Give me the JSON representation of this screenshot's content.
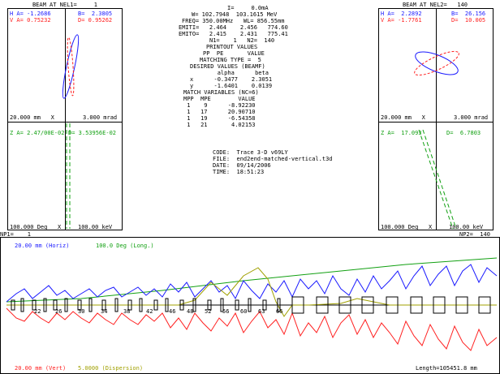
{
  "left_panel": {
    "title": "BEAM AT NEL1=     1",
    "h_a": "H A= -1.2686",
    "v_a": "V A= 0.75232",
    "h_b": "B=  2.3805",
    "v_b": "D= 0.95262",
    "scale_x": "20.000 mm   X",
    "scale_xp": "3.000 mrad",
    "z_a": "Z A= 2.47/00E-02",
    "z_b": "D= 3.53956E-02",
    "scale_phase": "100.000 Deg   X",
    "scale_energy": "100.00 keV"
  },
  "right_panel": {
    "title": "BEAM AT NEL2=   140",
    "h_a": "H A=  2.2892",
    "v_a": "V A= -1.7761",
    "h_b": "B=  26.156",
    "v_b": "D=  10.005",
    "scale_x": "20.000 mm   X",
    "scale_xp": "3.000 mrad",
    "z_a": "Z A=  17.093",
    "z_b": "D=  6.7803",
    "scale_phase": "100.000 Deg   X",
    "scale_energy": "100.00 keV"
  },
  "center_info": {
    "l1": "I=     0.0mA",
    "l2": "W= 102.7948  103.1615 MeV",
    "l3": "FREQ= 350.00MHz   WL= 856.55mm",
    "l4": "EMITI=   2.464    2.456   774.60",
    "l5": "EMITO=   2.415    2.431   775.41",
    "l6": "N1=    1   N2=  140",
    "l7": "PRINTOUT VALUES",
    "l8": "PP  PE       VALUE",
    "l9": "MATCHING TYPE =  5",
    "l10": "DESIRED VALUES (BEAMF)",
    "l11": "        alpha      beta",
    "l12": "x      -0.3477    2.3051",
    "l13": "y      -1.6401    0.0139",
    "l14": "MATCH VARIABLES (NC=6)",
    "l15": "MPP  MPE        VALUE",
    "l16": " 1    9      -8.92230",
    "l17": " 1   17      20.90710",
    "l18": " 1   19      -6.54358",
    "l19": " 1   21       4.02153"
  },
  "file_info": {
    "code": "CODE:  Trace 3-D v69LY",
    "file": "FILE:  end2end-matched-vertical.t3d",
    "date": "DATE:  09/14/2006",
    "time": "TIME:  18:51:23"
  },
  "bottom_panel": {
    "np1": "NP1=    1",
    "np2": "NP2=  140",
    "horiz_scale": "20.00 mm (Horiz)",
    "long_scale": "100.0 Deg (Long.)",
    "vert_scale": "20.00 mm (Vert)",
    "disp_scale": "5.0000 (Dispersion)",
    "length": "Length=105451.8 mm",
    "element_labels": [
      "22",
      "26",
      "30",
      "34",
      "38",
      "42",
      "46",
      "48",
      "52",
      "56",
      "60",
      "63",
      "66"
    ]
  },
  "colors": {
    "horizontal": "#1a1aff",
    "vertical": "#ff2020",
    "longitudinal": "#12a012",
    "dispersion": "#a0a000"
  }
}
